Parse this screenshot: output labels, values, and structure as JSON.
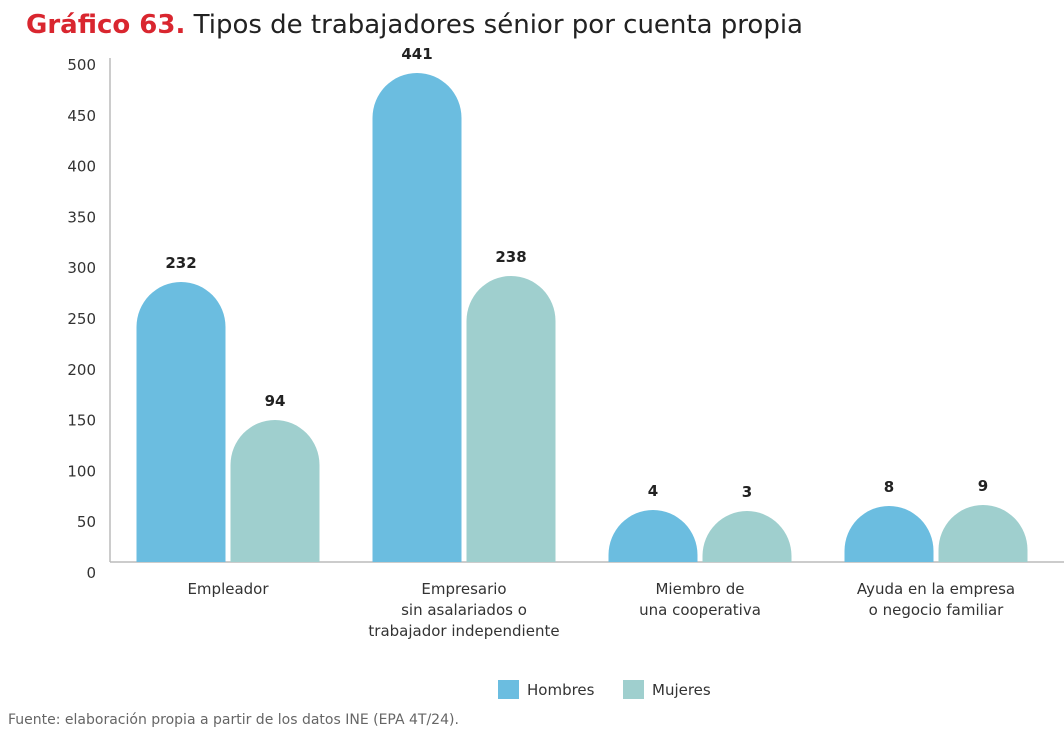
{
  "title_number": "Gráfico 63.",
  "title_text": "Tipos de trabajadores sénior por cuenta propia",
  "source": "Fuente: elaboración propia a partir de los datos INE (EPA 4T/24).",
  "chart_data": {
    "type": "bar",
    "categories": [
      [
        "Empleador"
      ],
      [
        "Empresario",
        "sin asalariados o",
        "trabajador independiente"
      ],
      [
        "Miembro de",
        "una cooperativa"
      ],
      [
        "Ayuda en la empresa",
        "o negocio familiar"
      ]
    ],
    "series": [
      {
        "name": "Hombres",
        "color": "#6bbde0",
        "values": [
          232,
          441,
          4,
          8
        ]
      },
      {
        "name": "Mujeres",
        "color": "#9fcfce",
        "values": [
          94,
          238,
          3,
          9
        ]
      }
    ],
    "ylim": [
      0,
      500
    ],
    "yticks": [
      0,
      50,
      100,
      150,
      200,
      250,
      300,
      350,
      400,
      450,
      500
    ],
    "grid": false,
    "legend": "bottom"
  }
}
